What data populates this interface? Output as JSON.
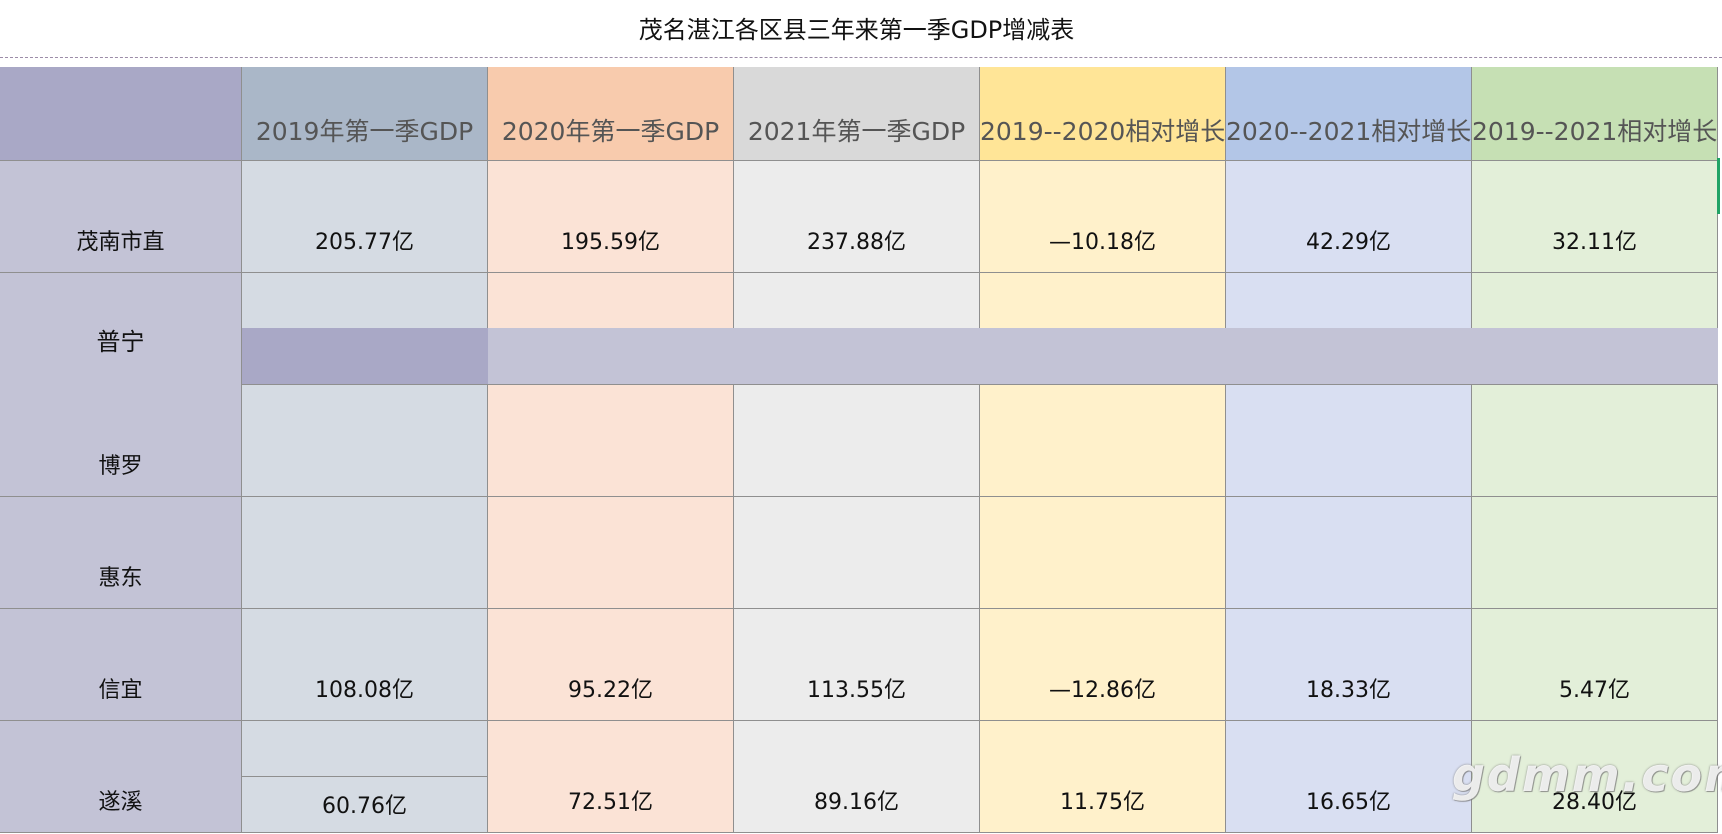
{
  "title": "茂名湛江各区县三年来第一季GDP增减表",
  "headers": [
    "",
    "2019年第一季GDP",
    "2020年第一季GDP",
    "2021年第一季GDP",
    "2019--2020相对增长",
    "2020--2021相对增长",
    "2019--2021相对增长"
  ],
  "rows": [
    {
      "region": "茂南市直",
      "values": [
        "205.77亿",
        "195.59亿",
        "237.88亿",
        "—10.18亿",
        "42.29亿",
        "32.11亿"
      ]
    },
    {
      "region": "普宁",
      "values": [
        "",
        "",
        "",
        "",
        "",
        ""
      ]
    },
    {
      "region": "博罗",
      "values": [
        "",
        "",
        "",
        "",
        "",
        ""
      ]
    },
    {
      "region": "惠东",
      "values": [
        "",
        "",
        "",
        "",
        "",
        ""
      ]
    },
    {
      "region": "信宜",
      "values": [
        "108.08亿",
        "95.22亿",
        "113.55亿",
        "—12.86亿",
        "18.33亿",
        "5.47亿"
      ]
    },
    {
      "region": "遂溪",
      "values": [
        "60.76亿",
        "72.51亿",
        "89.16亿",
        "11.75亿",
        "16.65亿",
        "28.40亿"
      ]
    }
  ],
  "watermark": "gdmm.com",
  "colors": {
    "region_col": "#c3c3d6",
    "col_2019": "#d5dbe3",
    "col_2020": "#fbe3d6",
    "col_2021": "#ececec",
    "col_19_20": "#fff1cb",
    "col_20_21": "#d9dff2",
    "col_19_21": "#e3efd9"
  }
}
